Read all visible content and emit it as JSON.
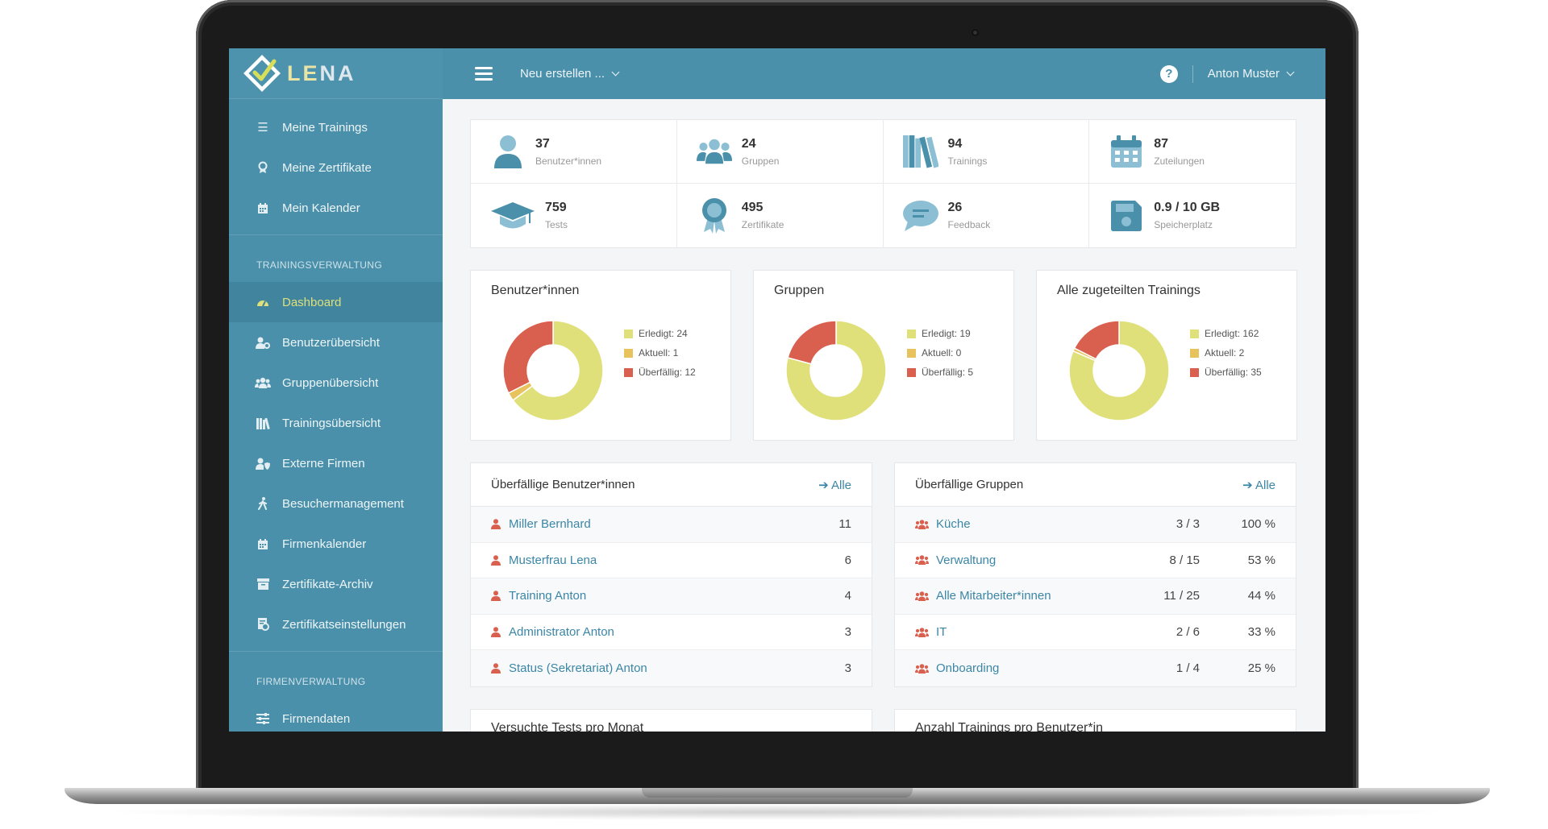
{
  "brand": {
    "name_left": "LE",
    "name_right": "NA"
  },
  "topbar": {
    "new_label": "Neu erstellen ...",
    "help_symbol": "?",
    "user_name": "Anton Muster"
  },
  "sidebar": {
    "personal": [
      {
        "label": "Meine Trainings",
        "icon": "list-icon"
      },
      {
        "label": "Meine Zertifikate",
        "icon": "award-icon"
      },
      {
        "label": "Mein Kalender",
        "icon": "calendar-icon"
      }
    ],
    "section_training": "TRAININGSVERWALTUNG",
    "training": [
      {
        "label": "Dashboard",
        "icon": "gauge-icon",
        "active": true
      },
      {
        "label": "Benutzerübersicht",
        "icon": "user-cog-icon"
      },
      {
        "label": "Gruppenübersicht",
        "icon": "users-icon"
      },
      {
        "label": "Trainingsübersicht",
        "icon": "books-icon"
      },
      {
        "label": "Externe Firmen",
        "icon": "user-shield-icon"
      },
      {
        "label": "Besuchermanagement",
        "icon": "walking-icon"
      },
      {
        "label": "Firmenkalender",
        "icon": "calendar-icon"
      },
      {
        "label": "Zertifikate-Archiv",
        "icon": "archive-icon"
      },
      {
        "label": "Zertifikatseinstellungen",
        "icon": "certificate-settings-icon"
      }
    ],
    "section_company": "FIRMENVERWALTUNG",
    "company": [
      {
        "label": "Firmendaten",
        "icon": "sliders-icon"
      }
    ]
  },
  "stats": [
    {
      "value": "37",
      "label": "Benutzer*innen",
      "icon": "user-icon"
    },
    {
      "value": "24",
      "label": "Gruppen",
      "icon": "users-icon"
    },
    {
      "value": "94",
      "label": "Trainings",
      "icon": "books-icon"
    },
    {
      "value": "87",
      "label": "Zuteilungen",
      "icon": "calendar-icon"
    },
    {
      "value": "759",
      "label": "Tests",
      "icon": "graduation-cap-icon"
    },
    {
      "value": "495",
      "label": "Zertifikate",
      "icon": "award-icon"
    },
    {
      "value": "26",
      "label": "Feedback",
      "icon": "comment-icon"
    },
    {
      "value": "0.9 / 10 GB",
      "label": "Speicherplatz",
      "icon": "floppy-disk-icon"
    }
  ],
  "colors": {
    "done": "#dfe07a",
    "current": "#e8c25c",
    "overdue": "#d9604e",
    "brand": "#4a90aa",
    "link": "#3b86a6"
  },
  "chart_data": [
    {
      "type": "pie",
      "title": "Benutzer*innen",
      "categories": [
        "Erledigt",
        "Aktuell",
        "Überfällig"
      ],
      "values": [
        24,
        1,
        12
      ],
      "legend": [
        "Erledigt: 24",
        "Aktuell: 1",
        "Überfällig: 12"
      ]
    },
    {
      "type": "pie",
      "title": "Gruppen",
      "categories": [
        "Erledigt",
        "Aktuell",
        "Überfällig"
      ],
      "values": [
        19,
        0,
        5
      ],
      "legend": [
        "Erledigt: 19",
        "Aktuell: 0",
        "Überfällig: 5"
      ]
    },
    {
      "type": "pie",
      "title": "Alle zugeteilten Trainings",
      "categories": [
        "Erledigt",
        "Aktuell",
        "Überfällig"
      ],
      "values": [
        162,
        2,
        35
      ],
      "legend": [
        "Erledigt: 162",
        "Aktuell: 2",
        "Überfällig: 35"
      ]
    }
  ],
  "overdue_users": {
    "title": "Überfällige Benutzer*innen",
    "all_label": "Alle",
    "rows": [
      {
        "name": "Miller Bernhard",
        "count": "11"
      },
      {
        "name": "Musterfrau Lena",
        "count": "6"
      },
      {
        "name": "Training Anton",
        "count": "4"
      },
      {
        "name": "Administrator Anton",
        "count": "3"
      },
      {
        "name": "Status (Sekretariat) Anton",
        "count": "3"
      }
    ]
  },
  "overdue_groups": {
    "title": "Überfällige Gruppen",
    "all_label": "Alle",
    "rows": [
      {
        "name": "Küche",
        "ratio": "3 / 3",
        "pct": "100 %"
      },
      {
        "name": "Verwaltung",
        "ratio": "8 / 15",
        "pct": "53 %"
      },
      {
        "name": "Alle Mitarbeiter*innen",
        "ratio": "11 / 25",
        "pct": "44 %"
      },
      {
        "name": "IT",
        "ratio": "2 / 6",
        "pct": "33 %"
      },
      {
        "name": "Onboarding",
        "ratio": "1 / 4",
        "pct": "25 %"
      }
    ]
  },
  "bottom": {
    "tests_title": "Versuchte Tests pro Monat",
    "trainings_title": "Anzahl Trainings pro Benutzer*in"
  }
}
